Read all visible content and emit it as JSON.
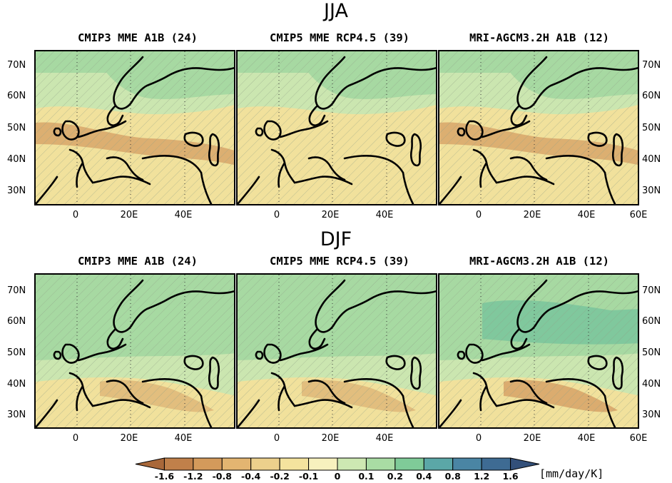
{
  "figure": {
    "rows": [
      {
        "season": "JJA"
      },
      {
        "season": "DJF"
      }
    ],
    "panel_titles": [
      "CMIP3 MME A1B (24)",
      "CMIP5 MME RCP4.5 (39)",
      "MRI-AGCM3.2H A1B (12)"
    ],
    "lat_labels": [
      "70N",
      "60N",
      "50N",
      "40N",
      "30N"
    ],
    "lon_labels": [
      "0",
      "20E",
      "40E"
    ],
    "lon_label_last": "60E"
  },
  "colorbar": {
    "labels": [
      "-1.6",
      "-1.2",
      "-0.8",
      "-0.4",
      "-0.2",
      "-0.1",
      "0",
      "0.1",
      "0.2",
      "0.4",
      "0.8",
      "1.2",
      "1.6"
    ],
    "colors": [
      "#a9683a",
      "#c0804a",
      "#d49a5b",
      "#e3b571",
      "#ecd08c",
      "#f4e39e",
      "#f7f1be",
      "#cde8b2",
      "#a9dca4",
      "#7fcb98",
      "#5ba7a7",
      "#4a85a4",
      "#3e6b93",
      "#33507a"
    ],
    "units": "[mm/day/K]"
  },
  "legend_colors": {
    "dry_strong": "#d8a66a",
    "dry": "#f1e19c",
    "wet_light": "#cbe6b0",
    "wet": "#a7d9a2",
    "wet_strong": "#7cc59c",
    "coast": "#000000"
  }
}
